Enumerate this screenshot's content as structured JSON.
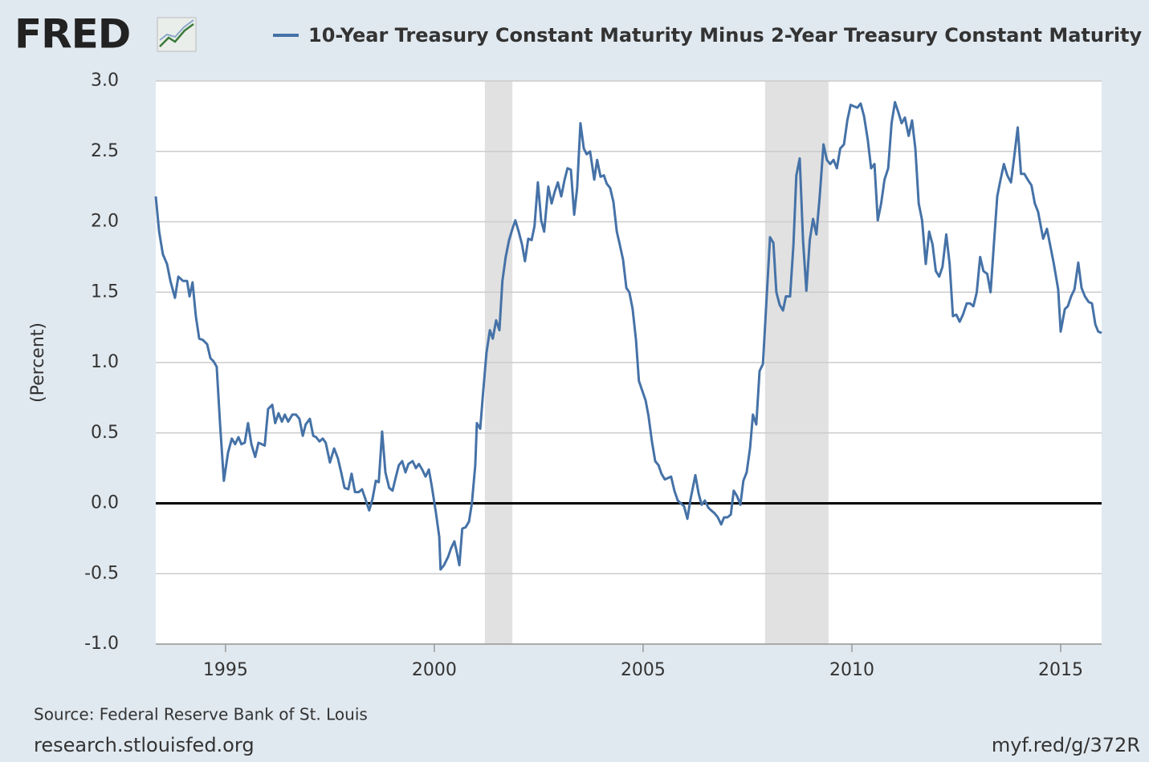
{
  "logo": "FRED",
  "footer": {
    "source": "Source: Federal Reserve Bank of St. Louis",
    "site": "research.stlouisfed.org",
    "link": "myf.red/g/372R"
  },
  "chart_data": {
    "type": "line",
    "ylabel": "(Percent)",
    "xlim": [
      1993.33,
      2015.98
    ],
    "xticks": [
      1995,
      2000,
      2005,
      2010,
      2015
    ],
    "ylim": [
      -1,
      3
    ],
    "yticks": [
      {
        "value": -1,
        "label": "-1.0"
      },
      -0.5,
      {
        "value": 0,
        "label": "0.0"
      },
      0.5,
      {
        "value": 1,
        "label": "1.0"
      },
      1.5,
      {
        "value": 2,
        "label": "2.0"
      },
      2.5,
      {
        "value": 3,
        "label": "3.0"
      }
    ],
    "grid": true,
    "zero_line": true,
    "recession_color": "#e1e1e1",
    "recessions": [
      [
        2001.21,
        2001.87
      ],
      [
        2007.92,
        2009.44
      ]
    ],
    "x": [
      1993.33,
      1993.41,
      1993.5,
      1993.6,
      1993.68,
      1993.79,
      1993.87,
      1993.98,
      1994.08,
      1994.14,
      1994.21,
      1994.29,
      1994.37,
      1994.46,
      1994.56,
      1994.64,
      1994.71,
      1994.79,
      1994.87,
      1994.96,
      1995.06,
      1995.15,
      1995.23,
      1995.31,
      1995.38,
      1995.46,
      1995.54,
      1995.62,
      1995.71,
      1995.79,
      1995.87,
      1995.94,
      1996.02,
      1996.12,
      1996.19,
      1996.27,
      1996.35,
      1996.42,
      1996.5,
      1996.6,
      1996.69,
      1996.77,
      1996.85,
      1996.92,
      1997.02,
      1997.1,
      1997.17,
      1997.25,
      1997.33,
      1997.4,
      1997.5,
      1997.6,
      1997.69,
      1997.77,
      1997.85,
      1997.94,
      1998.02,
      1998.1,
      1998.19,
      1998.27,
      1998.35,
      1998.44,
      1998.52,
      1998.6,
      1998.67,
      1998.75,
      1998.83,
      1998.92,
      1999.0,
      1999.08,
      1999.15,
      1999.23,
      1999.31,
      1999.38,
      1999.48,
      1999.56,
      1999.63,
      1999.71,
      1999.79,
      1999.87,
      1999.94,
      2000.04,
      2000.12,
      2000.15,
      2000.23,
      2000.33,
      2000.4,
      2000.48,
      2000.54,
      2000.6,
      2000.67,
      2000.75,
      2000.83,
      2000.9,
      2000.98,
      2001.02,
      2001.1,
      2001.17,
      2001.25,
      2001.33,
      2001.4,
      2001.48,
      2001.56,
      2001.63,
      2001.71,
      2001.79,
      2001.87,
      2001.94,
      2002.02,
      2002.1,
      2002.17,
      2002.25,
      2002.33,
      2002.4,
      2002.48,
      2002.56,
      2002.63,
      2002.73,
      2002.81,
      2002.88,
      2002.96,
      2003.04,
      2003.12,
      2003.19,
      2003.27,
      2003.35,
      2003.42,
      2003.5,
      2003.58,
      2003.65,
      2003.73,
      2003.83,
      2003.9,
      2003.98,
      2004.06,
      2004.13,
      2004.21,
      2004.29,
      2004.37,
      2004.44,
      2004.52,
      2004.6,
      2004.67,
      2004.75,
      2004.83,
      2004.9,
      2004.98,
      2005.06,
      2005.13,
      2005.21,
      2005.29,
      2005.37,
      2005.44,
      2005.52,
      2005.6,
      2005.67,
      2005.75,
      2005.83,
      2005.9,
      2005.98,
      2006.06,
      2006.13,
      2006.25,
      2006.33,
      2006.4,
      2006.48,
      2006.56,
      2006.63,
      2006.71,
      2006.79,
      2006.87,
      2006.94,
      2007.02,
      2007.1,
      2007.17,
      2007.25,
      2007.33,
      2007.4,
      2007.48,
      2007.56,
      2007.63,
      2007.71,
      2007.79,
      2007.87,
      2007.94,
      2008.04,
      2008.12,
      2008.19,
      2008.27,
      2008.35,
      2008.42,
      2008.52,
      2008.6,
      2008.67,
      2008.75,
      2008.83,
      2008.91,
      2008.99,
      2009.07,
      2009.15,
      2009.23,
      2009.32,
      2009.4,
      2009.48,
      2009.56,
      2009.64,
      2009.72,
      2009.81,
      2009.89,
      2009.97,
      2010.05,
      2010.13,
      2010.21,
      2010.29,
      2010.38,
      2010.46,
      2010.54,
      2010.62,
      2010.7,
      2010.78,
      2010.87,
      2010.95,
      2011.03,
      2011.11,
      2011.19,
      2011.27,
      2011.36,
      2011.44,
      2011.52,
      2011.6,
      2011.68,
      2011.77,
      2011.85,
      2011.93,
      2012.01,
      2012.09,
      2012.17,
      2012.26,
      2012.34,
      2012.42,
      2012.5,
      2012.58,
      2012.66,
      2012.75,
      2012.83,
      2012.91,
      2012.99,
      2013.07,
      2013.15,
      2013.24,
      2013.32,
      2013.4,
      2013.48,
      2013.56,
      2013.64,
      2013.72,
      2013.81,
      2013.89,
      2013.97,
      2014.05,
      2014.13,
      2014.21,
      2014.3,
      2014.38,
      2014.46,
      2014.58,
      2014.67,
      2014.83,
      2014.94,
      2015.0,
      2015.1,
      2015.17,
      2015.25,
      2015.33,
      2015.42,
      2015.5,
      2015.58,
      2015.67,
      2015.75,
      2015.83,
      2015.9,
      2015.98
    ],
    "series": [
      {
        "name": "10-Year Treasury Constant Maturity Minus 2-Year Treasury Constant Maturity",
        "color": "#4572a7",
        "values": [
          2.18,
          1.93,
          1.77,
          1.7,
          1.58,
          1.46,
          1.61,
          1.58,
          1.58,
          1.47,
          1.57,
          1.33,
          1.17,
          1.16,
          1.13,
          1.03,
          1.01,
          0.97,
          0.56,
          0.16,
          0.36,
          0.46,
          0.42,
          0.47,
          0.42,
          0.43,
          0.57,
          0.42,
          0.33,
          0.43,
          0.42,
          0.41,
          0.67,
          0.7,
          0.57,
          0.64,
          0.58,
          0.63,
          0.58,
          0.63,
          0.63,
          0.6,
          0.48,
          0.56,
          0.6,
          0.48,
          0.47,
          0.44,
          0.46,
          0.43,
          0.29,
          0.39,
          0.32,
          0.22,
          0.11,
          0.1,
          0.21,
          0.08,
          0.08,
          0.1,
          0.03,
          -0.05,
          0.03,
          0.16,
          0.15,
          0.51,
          0.22,
          0.11,
          0.09,
          0.19,
          0.27,
          0.3,
          0.22,
          0.28,
          0.3,
          0.25,
          0.28,
          0.24,
          0.19,
          0.24,
          0.12,
          -0.07,
          -0.24,
          -0.47,
          -0.44,
          -0.38,
          -0.32,
          -0.27,
          -0.35,
          -0.44,
          -0.18,
          -0.17,
          -0.13,
          0.0,
          0.27,
          0.57,
          0.53,
          0.79,
          1.07,
          1.23,
          1.17,
          1.3,
          1.23,
          1.58,
          1.75,
          1.87,
          1.95,
          2.01,
          1.93,
          1.84,
          1.72,
          1.88,
          1.87,
          1.97,
          2.28,
          2.01,
          1.93,
          2.25,
          2.13,
          2.21,
          2.28,
          2.18,
          2.3,
          2.38,
          2.37,
          2.05,
          2.24,
          2.7,
          2.52,
          2.48,
          2.5,
          2.3,
          2.44,
          2.32,
          2.33,
          2.27,
          2.24,
          2.14,
          1.93,
          1.84,
          1.73,
          1.53,
          1.5,
          1.38,
          1.16,
          0.87,
          0.8,
          0.73,
          0.62,
          0.44,
          0.3,
          0.27,
          0.21,
          0.17,
          0.18,
          0.19,
          0.09,
          0.02,
          0.0,
          -0.02,
          -0.11,
          0.02,
          0.2,
          0.07,
          -0.01,
          0.02,
          -0.03,
          -0.05,
          -0.07,
          -0.1,
          -0.15,
          -0.1,
          -0.1,
          -0.08,
          0.09,
          0.05,
          -0.01,
          0.16,
          0.22,
          0.39,
          0.63,
          0.56,
          0.94,
          0.99,
          1.36,
          1.89,
          1.85,
          1.5,
          1.41,
          1.37,
          1.47,
          1.47,
          1.84,
          2.33,
          2.45,
          1.87,
          1.51,
          1.87,
          2.02,
          1.91,
          2.18,
          2.55,
          2.44,
          2.41,
          2.44,
          2.38,
          2.52,
          2.55,
          2.72,
          2.83,
          2.82,
          2.81,
          2.84,
          2.75,
          2.58,
          2.38,
          2.41,
          2.01,
          2.13,
          2.3,
          2.38,
          2.7,
          2.85,
          2.78,
          2.7,
          2.74,
          2.61,
          2.72,
          2.52,
          2.13,
          2.01,
          1.7,
          1.93,
          1.84,
          1.65,
          1.61,
          1.68,
          1.91,
          1.7,
          1.33,
          1.34,
          1.29,
          1.34,
          1.42,
          1.42,
          1.4,
          1.5,
          1.75,
          1.65,
          1.63,
          1.5,
          1.84,
          2.18,
          2.3,
          2.41,
          2.33,
          2.28,
          2.47,
          2.67,
          2.34,
          2.34,
          2.3,
          2.26,
          2.13,
          2.07,
          1.88,
          1.95,
          1.71,
          1.52,
          1.22,
          1.38,
          1.4,
          1.47,
          1.52,
          1.71,
          1.53,
          1.47,
          1.43,
          1.42,
          1.27,
          1.22,
          1.21
        ]
      }
    ]
  }
}
